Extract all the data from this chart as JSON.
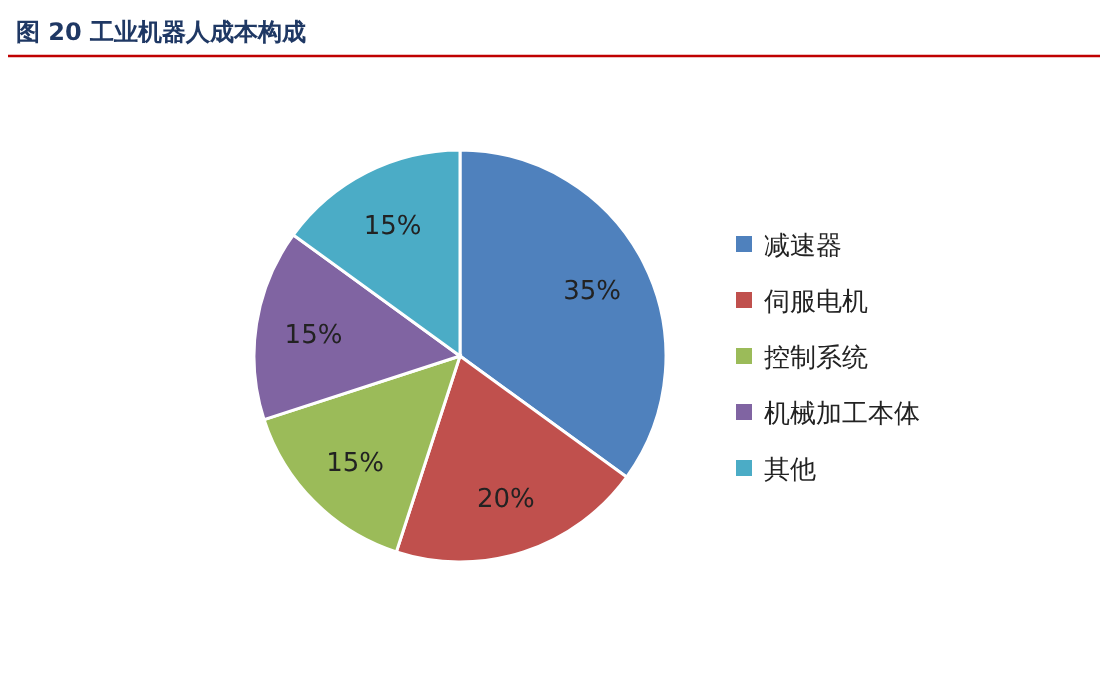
{
  "chart_data": {
    "type": "pie",
    "title": "图 20 工业机器人成本构成",
    "categories": [
      "减速器",
      "伺服电机",
      "控制系统",
      "机械加工本体",
      "其他"
    ],
    "values": [
      35,
      20,
      15,
      15,
      15
    ],
    "colors": [
      "#4f81bd",
      "#c0504d",
      "#9bbb59",
      "#8064a2",
      "#4bacc6"
    ],
    "value_labels": [
      "35%",
      "20%",
      "15%",
      "15%",
      "15%"
    ],
    "legend": "right"
  }
}
